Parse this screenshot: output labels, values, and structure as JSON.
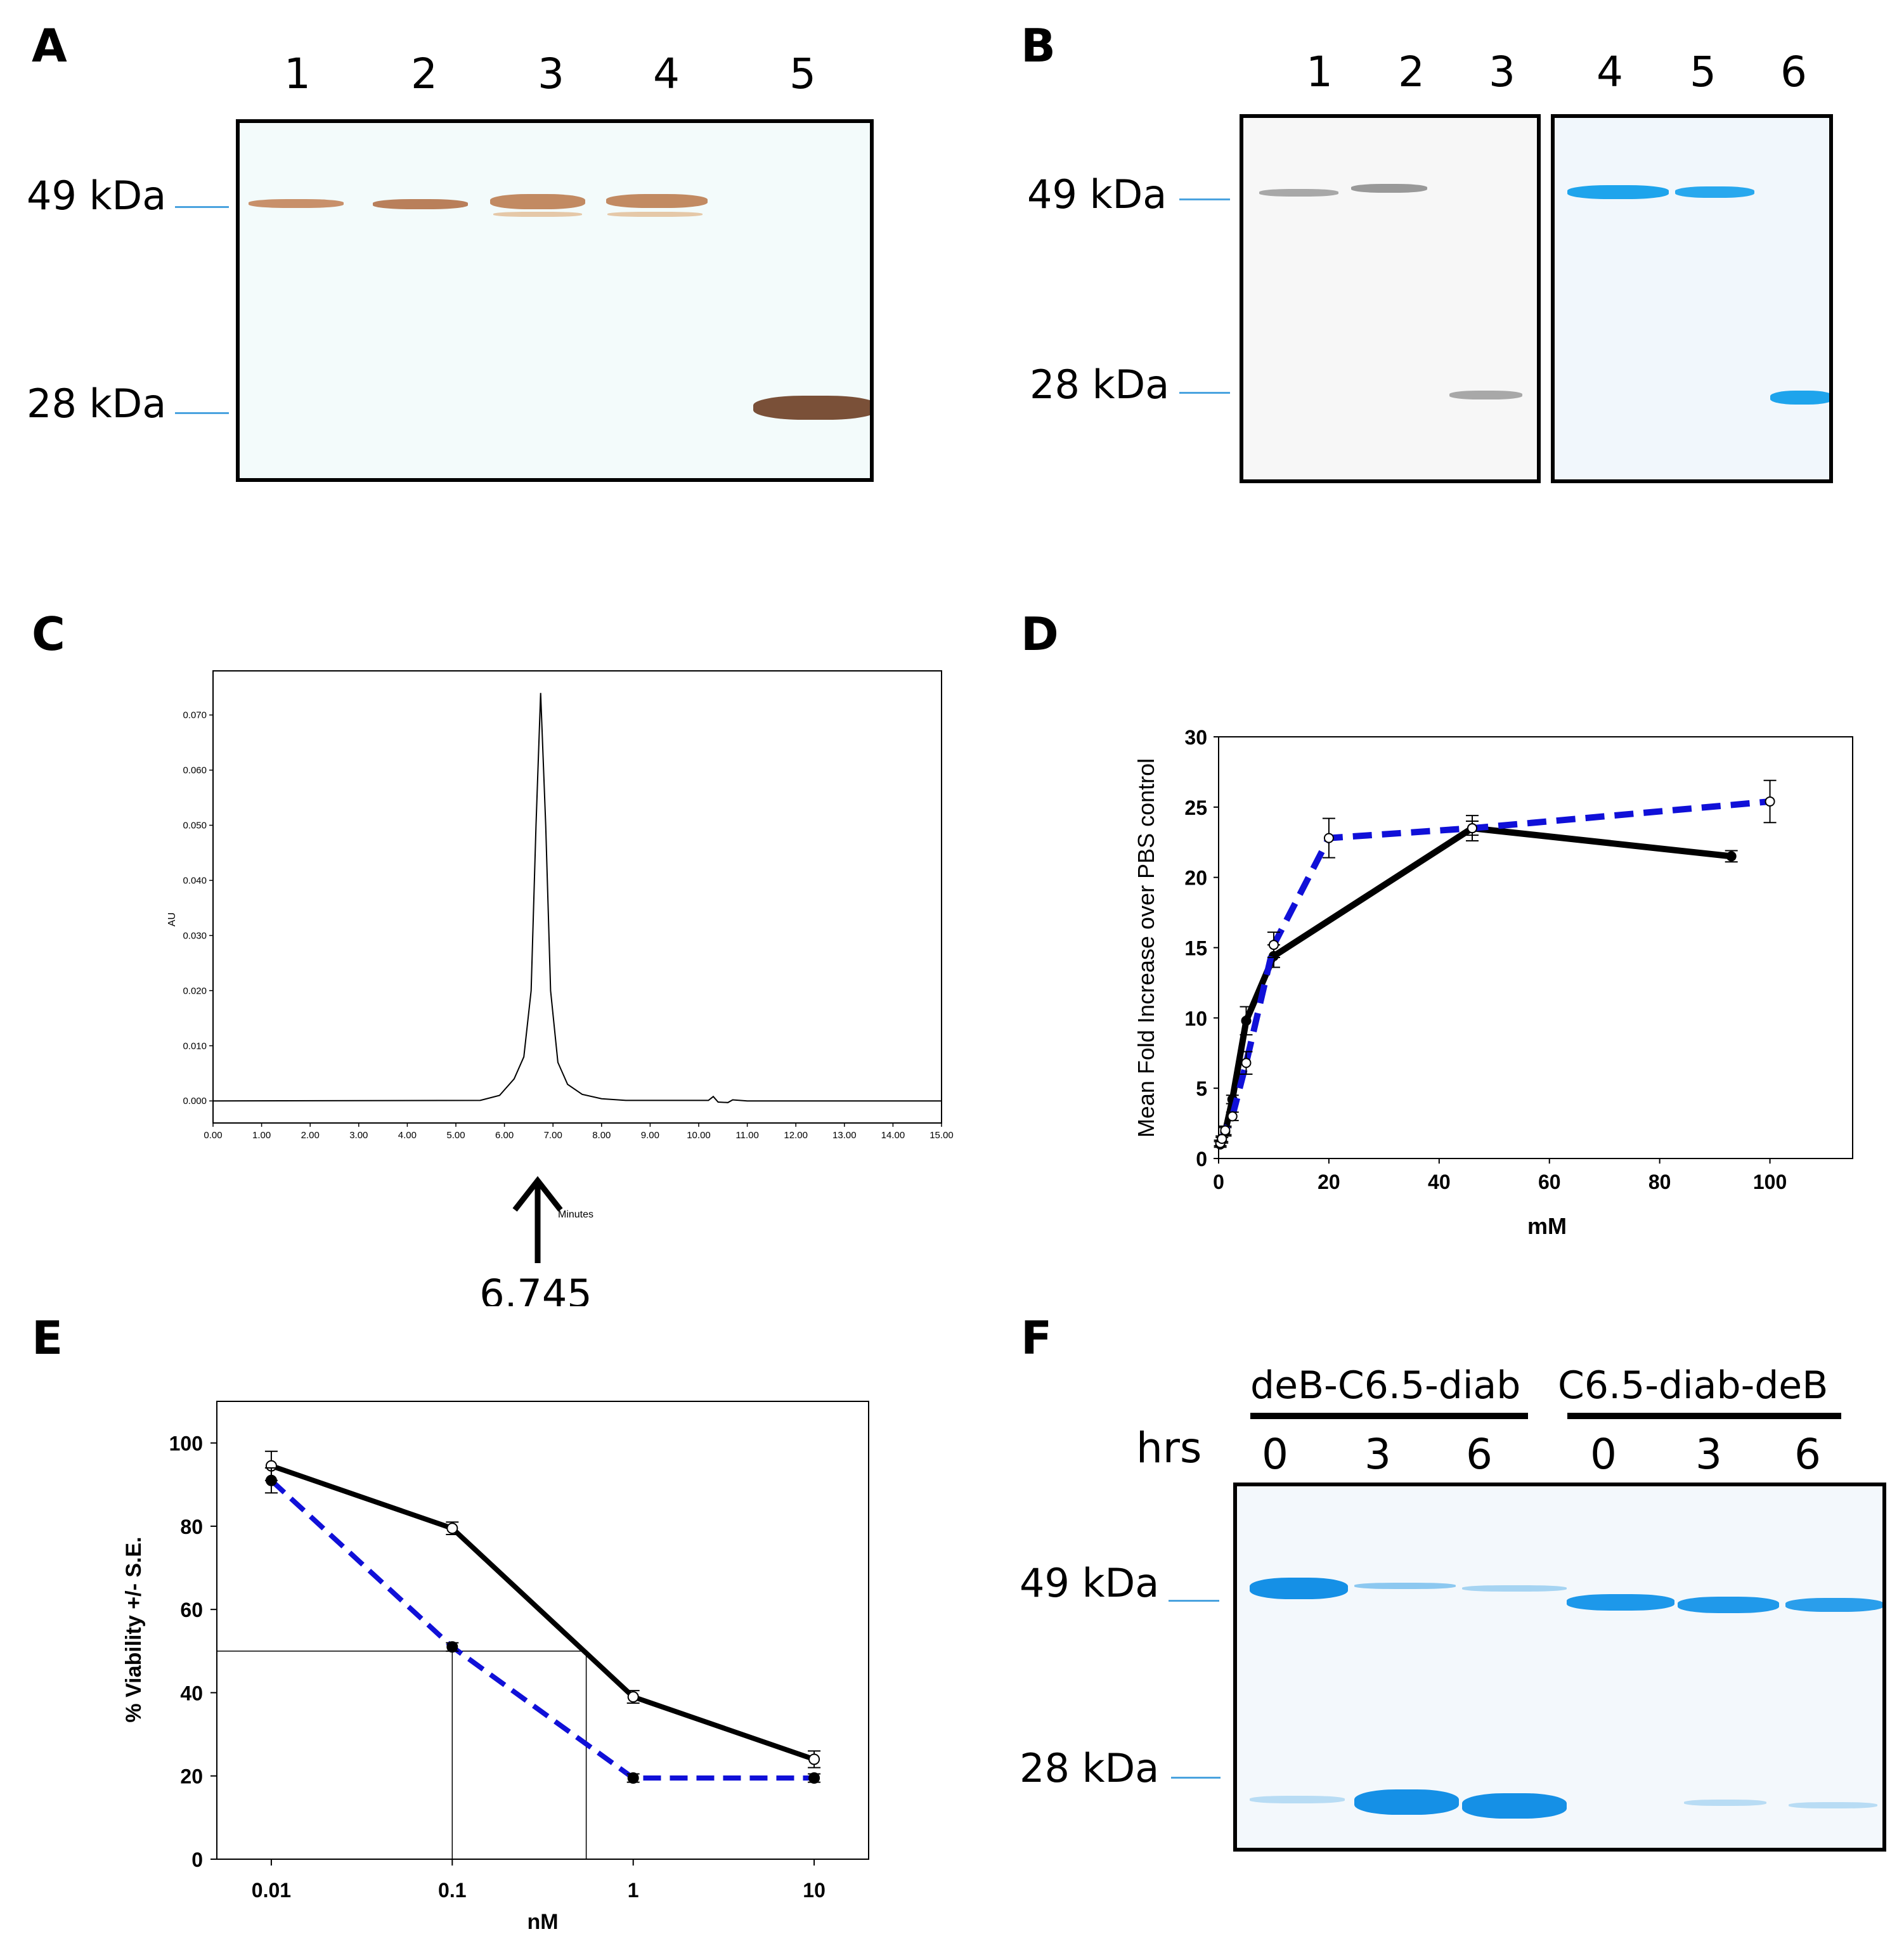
{
  "panel_a": {
    "label": "A",
    "lanes": [
      "1",
      "2",
      "3",
      "4",
      "5"
    ],
    "markers": [
      "49 kDa",
      "28 kDa"
    ]
  },
  "panel_b": {
    "label": "B",
    "lanes": [
      "1",
      "2",
      "3",
      "4",
      "5",
      "6"
    ],
    "markers": [
      "49 kDa",
      "28 kDa"
    ]
  },
  "panel_c": {
    "label": "C",
    "arrow_label": "6.745",
    "colors": {
      "trace": "#000000"
    }
  },
  "panel_d": {
    "label": "D",
    "colors": {
      "blue": "#1010d8",
      "black": "#000000"
    }
  },
  "panel_e": {
    "label": "E",
    "colors": {
      "blue": "#1010d8",
      "black": "#000000"
    }
  },
  "panel_f": {
    "label": "F",
    "group1": "deB-C6.5-diab",
    "group2": "C6.5-diab-deB",
    "hrs_label": "hrs",
    "lanes": [
      "0",
      "3",
      "6",
      "0",
      "3",
      "6"
    ],
    "markers": [
      "49 kDa",
      "28 kDa"
    ]
  },
  "chart_data": [
    {
      "id": "C",
      "type": "line",
      "title": "",
      "xlabel": "Minutes",
      "ylabel": "AU",
      "xlim": [
        0,
        15
      ],
      "ylim": [
        -0.004,
        0.078
      ],
      "xticks": [
        "0.00",
        "1.00",
        "2.00",
        "3.00",
        "4.00",
        "5.00",
        "6.00",
        "7.00",
        "8.00",
        "9.00",
        "10.00",
        "11.00",
        "12.00",
        "13.00",
        "14.00",
        "15.00"
      ],
      "yticks": [
        "0.000",
        "0.010",
        "0.020",
        "0.030",
        "0.040",
        "0.050",
        "0.060",
        "0.070"
      ],
      "peak": {
        "x": 6.745,
        "y": 0.074
      },
      "x": [
        0,
        5.5,
        5.9,
        6.2,
        6.4,
        6.55,
        6.65,
        6.745,
        6.85,
        6.95,
        7.1,
        7.3,
        7.6,
        8.0,
        8.5,
        10.2,
        10.3,
        10.4,
        10.6,
        10.7,
        11.0,
        15
      ],
      "y": [
        0,
        0.0001,
        0.001,
        0.004,
        0.008,
        0.02,
        0.05,
        0.074,
        0.05,
        0.02,
        0.007,
        0.003,
        0.0012,
        0.0004,
        0.0001,
        0.0001,
        0.0008,
        -0.0002,
        -0.0003,
        0.0002,
        0,
        0
      ]
    },
    {
      "id": "D",
      "type": "line",
      "xlabel": "mM",
      "ylabel": "Mean Fold Increase over PBS control",
      "xlim": [
        0,
        115
      ],
      "ylim": [
        0,
        30
      ],
      "xticks": [
        0,
        20,
        40,
        60,
        80,
        100
      ],
      "yticks": [
        0,
        5,
        10,
        15,
        20,
        25,
        30
      ],
      "series": [
        {
          "name": "open-dashed",
          "style": "dashed",
          "color": "#1010d8",
          "marker": "open",
          "x": [
            0.3,
            0.6,
            1.2,
            2.5,
            5,
            10,
            20,
            46,
            100
          ],
          "y": [
            1.1,
            1.4,
            2.0,
            3.0,
            6.8,
            15.2,
            22.8,
            23.5,
            25.4
          ],
          "err": [
            0.2,
            0.2,
            0.3,
            0.3,
            0.8,
            0.9,
            1.4,
            0.5,
            1.5
          ]
        },
        {
          "name": "filled-solid",
          "style": "solid",
          "color": "#000000",
          "marker": "filled",
          "x": [
            0.3,
            0.6,
            1.2,
            2.5,
            5,
            10,
            46,
            93
          ],
          "y": [
            1.0,
            1.3,
            1.9,
            4.2,
            9.8,
            14.4,
            23.5,
            21.5
          ],
          "err": [
            0.2,
            0.2,
            0.3,
            0.3,
            1.0,
            0.8,
            0.9,
            0.4
          ]
        }
      ]
    },
    {
      "id": "E",
      "type": "line",
      "xscale": "log",
      "xlabel": "nM",
      "ylabel": "% Viability +/- S.E.",
      "xlim": [
        0.005,
        20
      ],
      "ylim": [
        0,
        110
      ],
      "xticks": [
        "0.01",
        "0.1",
        "1",
        "10"
      ],
      "yticks": [
        0,
        20,
        40,
        60,
        80,
        100
      ],
      "ic50_line_y": 50,
      "ic50_x": [
        0.1,
        0.55
      ],
      "series": [
        {
          "name": "open-solid",
          "style": "solid",
          "color": "#000000",
          "marker": "open",
          "x": [
            0.01,
            0.1,
            1,
            10
          ],
          "y": [
            94.5,
            79.5,
            39,
            24
          ],
          "err": [
            3.5,
            1.5,
            1.5,
            2
          ]
        },
        {
          "name": "filled-dashed",
          "style": "dashed",
          "color": "#1010d8",
          "marker": "filled",
          "x": [
            0.01,
            0.1,
            1,
            10
          ],
          "y": [
            91,
            51,
            19.5,
            19.5
          ],
          "err": [
            3,
            1,
            1,
            1
          ]
        }
      ]
    }
  ]
}
